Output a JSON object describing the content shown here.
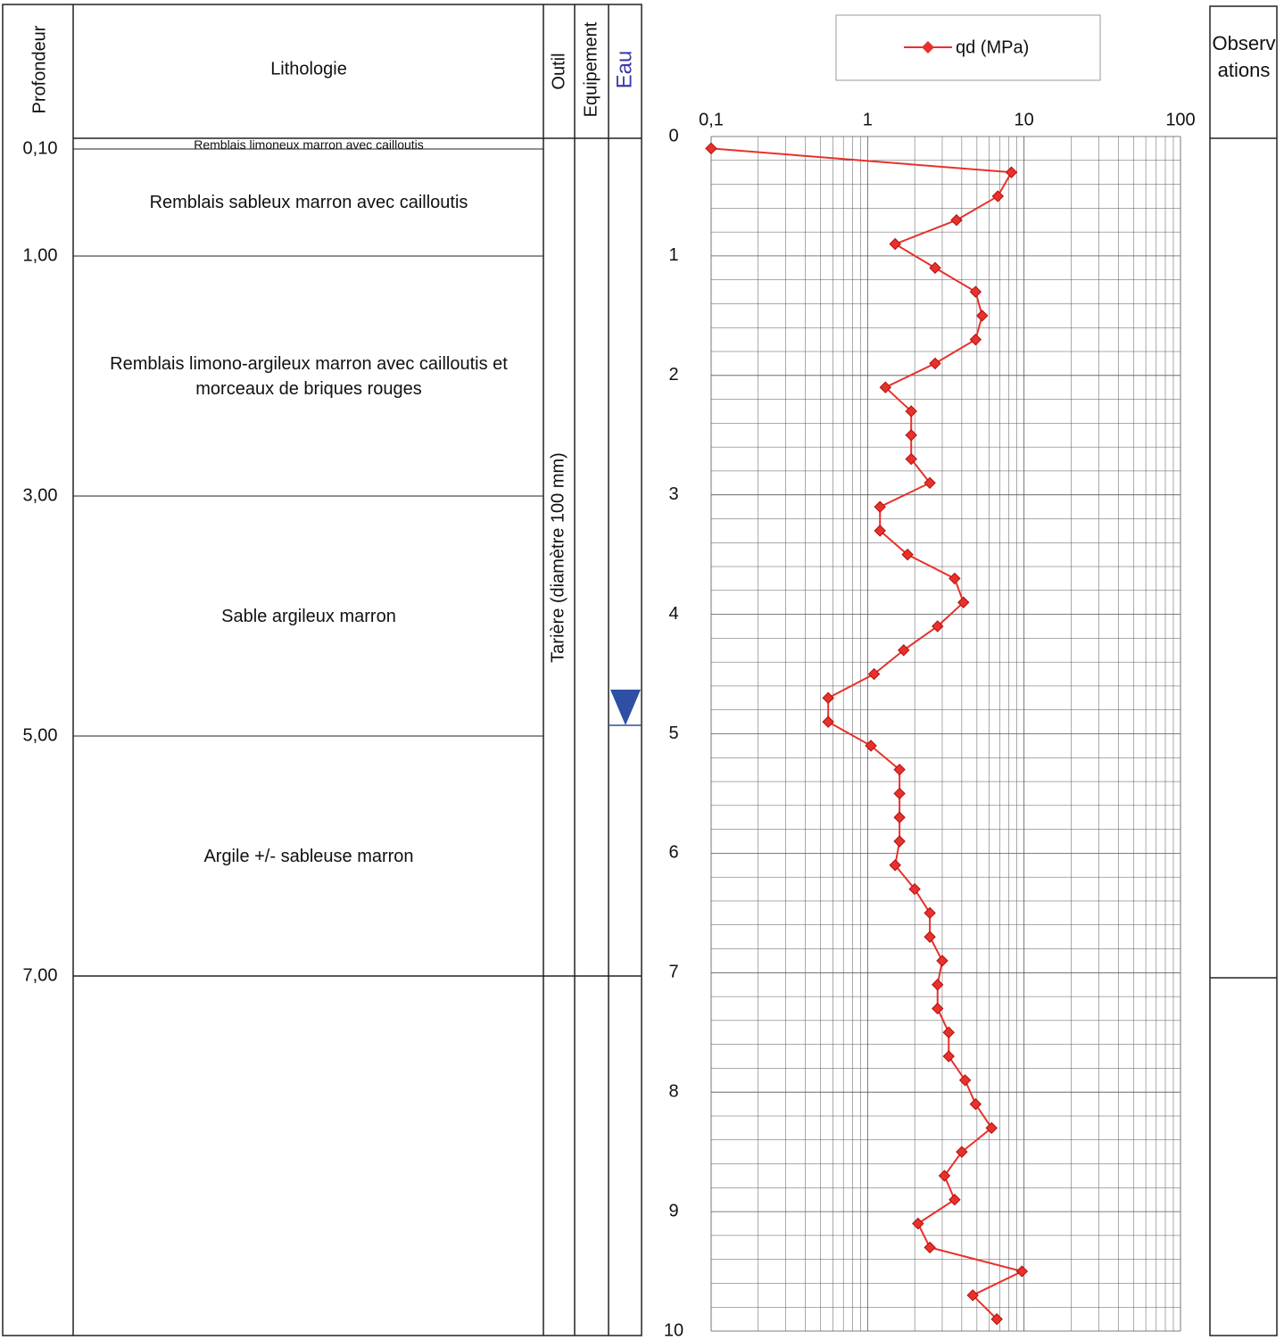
{
  "log": {
    "headers": {
      "depth": "Profondeur",
      "lithology": "Lithologie",
      "tool": "Outil",
      "equipment": "Equipement",
      "water": "Eau",
      "observations": "Observations"
    },
    "tool_description": "Tarière (diamètre 100 mm)",
    "layers": [
      {
        "depth": "0,10",
        "description": "Remblais limoneux marron avec cailloutis"
      },
      {
        "depth": "1,00",
        "description": "Remblais sableux marron avec cailloutis"
      },
      {
        "depth": "3,00",
        "description": "Remblais limono-argileux marron avec cailloutis et morceaux de briques rouges"
      },
      {
        "depth": "5,00",
        "description": "Sable argileux marron"
      },
      {
        "depth": "7,00",
        "description": "Argile +/- sableuse marron"
      }
    ]
  },
  "chart_data": {
    "type": "line",
    "y": [
      0.1,
      0.3,
      0.5,
      0.7,
      0.9,
      1.1,
      1.3,
      1.5,
      1.7,
      1.9,
      2.1,
      2.3,
      2.5,
      2.7,
      2.9,
      3.1,
      3.3,
      3.5,
      3.7,
      3.9,
      4.1,
      4.3,
      4.5,
      4.7,
      4.9,
      5.1,
      5.3,
      5.5,
      5.7,
      5.9,
      6.1,
      6.3,
      6.5,
      6.7,
      6.9,
      7.1,
      7.3,
      7.5,
      7.7,
      7.9,
      8.1,
      8.3,
      8.5,
      8.7,
      8.9,
      9.1,
      9.3,
      9.5,
      9.7,
      9.9
    ],
    "series": [
      {
        "name": "qd (MPa)",
        "color": "#e8312b",
        "values": [
          0.1,
          8.3,
          6.8,
          3.7,
          1.5,
          2.7,
          4.9,
          5.4,
          4.9,
          2.7,
          1.3,
          1.9,
          1.9,
          1.9,
          2.5,
          1.2,
          1.2,
          1.8,
          3.6,
          4.1,
          2.8,
          1.7,
          1.1,
          0.56,
          0.56,
          1.05,
          1.6,
          1.6,
          1.6,
          1.6,
          1.5,
          2.0,
          2.5,
          2.5,
          3.0,
          2.8,
          2.8,
          3.3,
          3.3,
          4.2,
          4.9,
          6.2,
          4.0,
          3.1,
          3.6,
          2.1,
          2.5,
          9.7,
          4.7,
          6.7
        ]
      }
    ],
    "xlim": [
      0.1,
      100
    ],
    "xscale": "log",
    "xticks": [
      {
        "value": 0.1,
        "label": "0,1"
      },
      1,
      10,
      100
    ],
    "ylim": [
      0,
      10
    ],
    "yinverted": true,
    "yticks": [
      0,
      1,
      2,
      3,
      4,
      5,
      6,
      7,
      8,
      9,
      10
    ],
    "grid": true,
    "legend": "top"
  }
}
